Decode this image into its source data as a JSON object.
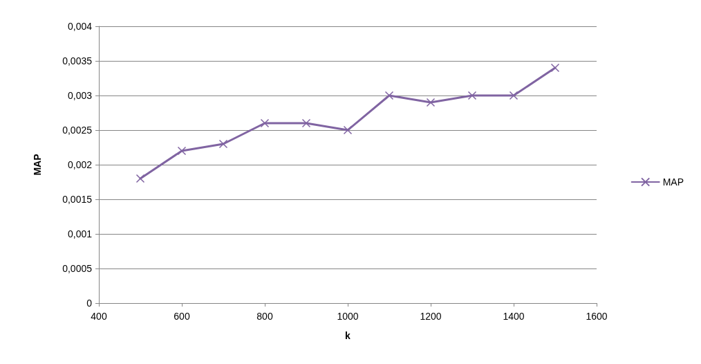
{
  "chart_data": {
    "type": "line",
    "xlabel": "k",
    "ylabel": "MAP",
    "x": [
      500,
      600,
      700,
      800,
      900,
      1000,
      1100,
      1200,
      1300,
      1400,
      1500
    ],
    "series": [
      {
        "name": "MAP",
        "color": "#8064a2",
        "values": [
          0.0018,
          0.0022,
          0.0023,
          0.0026,
          0.0026,
          0.0025,
          0.003,
          0.0029,
          0.003,
          0.003,
          0.0034
        ]
      }
    ],
    "xlim": [
      400,
      1600
    ],
    "xticks": [
      400,
      600,
      800,
      1000,
      1200,
      1400,
      1600
    ],
    "ylim": [
      0,
      0.004
    ],
    "yticks": [
      0,
      {
        "value": 0.0005,
        "label": "0,0005"
      },
      {
        "value": 0.001,
        "label": "0,001"
      },
      {
        "value": 0.0015,
        "label": "0,0015"
      },
      {
        "value": 0.002,
        "label": "0,002"
      },
      {
        "value": 0.0025,
        "label": "0,0025"
      },
      {
        "value": 0.003,
        "label": "0,003"
      },
      {
        "value": 0.0035,
        "label": "0,0035"
      },
      {
        "value": 0.004,
        "label": "0,004"
      }
    ],
    "grid": "y",
    "legend": "right",
    "marker": "cross",
    "line_style": "solid"
  }
}
